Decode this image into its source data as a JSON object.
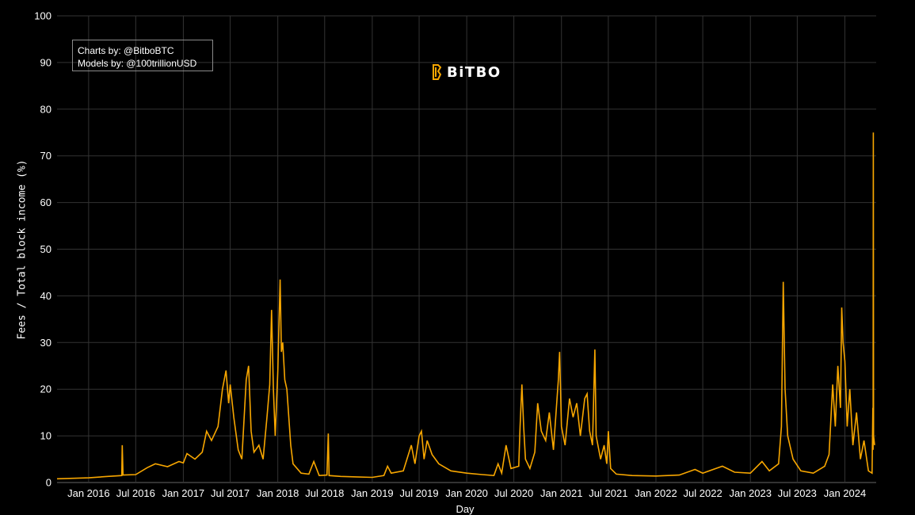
{
  "credits": {
    "line1": "Charts by: @BitboBTC",
    "line2": "Models by: @100trillionUSD"
  },
  "logo": {
    "text": "BiTBO",
    "color": "#f7a600"
  },
  "colors": {
    "line": "#f7a600",
    "background": "#000000",
    "grid": "#333333"
  },
  "chart_data": {
    "type": "line",
    "xlabel": "Day",
    "ylabel": "Fees / Total block income (%)",
    "ylim": [
      0,
      100
    ],
    "yticks": [
      0,
      10,
      20,
      30,
      40,
      50,
      60,
      70,
      80,
      90,
      100
    ],
    "xlim": [
      "2015-09-01",
      "2024-05-01"
    ],
    "xticks": [
      {
        "date": "2016-01-01",
        "label": "Jan 2016"
      },
      {
        "date": "2016-07-01",
        "label": "Jul 2016"
      },
      {
        "date": "2017-01-01",
        "label": "Jan 2017"
      },
      {
        "date": "2017-07-01",
        "label": "Jul 2017"
      },
      {
        "date": "2018-01-01",
        "label": "Jan 2018"
      },
      {
        "date": "2018-07-01",
        "label": "Jul 2018"
      },
      {
        "date": "2019-01-01",
        "label": "Jan 2019"
      },
      {
        "date": "2019-07-01",
        "label": "Jul 2019"
      },
      {
        "date": "2020-01-01",
        "label": "Jan 2020"
      },
      {
        "date": "2020-07-01",
        "label": "Jul 2020"
      },
      {
        "date": "2021-01-01",
        "label": "Jan 2021"
      },
      {
        "date": "2021-07-01",
        "label": "Jul 2021"
      },
      {
        "date": "2022-01-01",
        "label": "Jan 2022"
      },
      {
        "date": "2022-07-01",
        "label": "Jul 2022"
      },
      {
        "date": "2023-01-01",
        "label": "Jan 2023"
      },
      {
        "date": "2023-07-01",
        "label": "Jul 2023"
      },
      {
        "date": "2024-01-01",
        "label": "Jan 2024"
      }
    ],
    "grid": true,
    "series": [
      {
        "color": "#f7a600",
        "points": [
          [
            "2015-09-01",
            0.8
          ],
          [
            "2015-11-01",
            0.9
          ],
          [
            "2016-01-01",
            1.0
          ],
          [
            "2016-03-15",
            1.3
          ],
          [
            "2016-05-08",
            1.5
          ],
          [
            "2016-05-10",
            8.0
          ],
          [
            "2016-05-13",
            1.6
          ],
          [
            "2016-07-01",
            1.7
          ],
          [
            "2016-08-15",
            3.2
          ],
          [
            "2016-09-15",
            4.0
          ],
          [
            "2016-11-01",
            3.4
          ],
          [
            "2016-12-15",
            4.5
          ],
          [
            "2017-01-01",
            4.2
          ],
          [
            "2017-01-15",
            6.2
          ],
          [
            "2017-02-15",
            5.0
          ],
          [
            "2017-03-15",
            6.5
          ],
          [
            "2017-04-01",
            11.0
          ],
          [
            "2017-04-20",
            9.0
          ],
          [
            "2017-05-15",
            12.0
          ],
          [
            "2017-06-01",
            20.0
          ],
          [
            "2017-06-15",
            24.0
          ],
          [
            "2017-06-25",
            17.0
          ],
          [
            "2017-07-01",
            21.0
          ],
          [
            "2017-07-15",
            14.0
          ],
          [
            "2017-08-01",
            7.0
          ],
          [
            "2017-08-15",
            5.0
          ],
          [
            "2017-09-01",
            22.0
          ],
          [
            "2017-09-10",
            25.0
          ],
          [
            "2017-09-20",
            11.0
          ],
          [
            "2017-10-01",
            6.5
          ],
          [
            "2017-10-20",
            8.0
          ],
          [
            "2017-11-05",
            5.0
          ],
          [
            "2017-11-20",
            14.0
          ],
          [
            "2017-12-01",
            21.0
          ],
          [
            "2017-12-08",
            37.0
          ],
          [
            "2017-12-15",
            20.0
          ],
          [
            "2017-12-22",
            10.0
          ],
          [
            "2018-01-01",
            24.0
          ],
          [
            "2018-01-05",
            33.0
          ],
          [
            "2018-01-10",
            43.5
          ],
          [
            "2018-01-15",
            28.0
          ],
          [
            "2018-01-20",
            30.0
          ],
          [
            "2018-01-28",
            22.0
          ],
          [
            "2018-02-05",
            20.0
          ],
          [
            "2018-02-20",
            8.0
          ],
          [
            "2018-03-01",
            4.0
          ],
          [
            "2018-04-01",
            2.0
          ],
          [
            "2018-05-01",
            1.8
          ],
          [
            "2018-05-20",
            4.5
          ],
          [
            "2018-06-10",
            1.5
          ],
          [
            "2018-07-10",
            1.6
          ],
          [
            "2018-07-15",
            10.5
          ],
          [
            "2018-07-18",
            1.5
          ],
          [
            "2018-09-01",
            1.3
          ],
          [
            "2018-11-01",
            1.2
          ],
          [
            "2019-01-01",
            1.1
          ],
          [
            "2019-02-15",
            1.5
          ],
          [
            "2019-03-01",
            3.5
          ],
          [
            "2019-03-15",
            2.0
          ],
          [
            "2019-05-01",
            2.5
          ],
          [
            "2019-06-01",
            8.0
          ],
          [
            "2019-06-15",
            4.0
          ],
          [
            "2019-07-01",
            10.0
          ],
          [
            "2019-07-10",
            11.0
          ],
          [
            "2019-07-20",
            5.0
          ],
          [
            "2019-08-01",
            9.0
          ],
          [
            "2019-08-20",
            6.0
          ],
          [
            "2019-09-15",
            4.0
          ],
          [
            "2019-11-01",
            2.5
          ],
          [
            "2020-01-01",
            2.0
          ],
          [
            "2020-03-01",
            1.7
          ],
          [
            "2020-04-15",
            1.5
          ],
          [
            "2020-05-01",
            4.0
          ],
          [
            "2020-05-15",
            2.0
          ],
          [
            "2020-06-01",
            8.0
          ],
          [
            "2020-06-20",
            3.0
          ],
          [
            "2020-07-20",
            3.5
          ],
          [
            "2020-07-25",
            12.0
          ],
          [
            "2020-08-01",
            21.0
          ],
          [
            "2020-08-08",
            12.0
          ],
          [
            "2020-08-15",
            5.0
          ],
          [
            "2020-09-01",
            3.0
          ],
          [
            "2020-09-20",
            6.5
          ],
          [
            "2020-10-01",
            17.0
          ],
          [
            "2020-10-15",
            11.0
          ],
          [
            "2020-11-01",
            9.0
          ],
          [
            "2020-11-15",
            15.0
          ],
          [
            "2020-12-01",
            7.0
          ],
          [
            "2020-12-20",
            22.0
          ],
          [
            "2020-12-25",
            28.0
          ],
          [
            "2021-01-01",
            12.0
          ],
          [
            "2021-01-15",
            8.0
          ],
          [
            "2021-02-01",
            18.0
          ],
          [
            "2021-02-15",
            14.0
          ],
          [
            "2021-03-01",
            17.0
          ],
          [
            "2021-03-15",
            10.0
          ],
          [
            "2021-04-01",
            18.0
          ],
          [
            "2021-04-10",
            19.0
          ],
          [
            "2021-04-20",
            11.0
          ],
          [
            "2021-05-01",
            8.0
          ],
          [
            "2021-05-10",
            28.5
          ],
          [
            "2021-05-15",
            10.0
          ],
          [
            "2021-06-01",
            5.0
          ],
          [
            "2021-06-15",
            8.0
          ],
          [
            "2021-06-25",
            4.0
          ],
          [
            "2021-07-01",
            11.0
          ],
          [
            "2021-07-10",
            3.0
          ],
          [
            "2021-08-01",
            1.8
          ],
          [
            "2021-10-01",
            1.5
          ],
          [
            "2022-01-01",
            1.4
          ],
          [
            "2022-04-01",
            1.6
          ],
          [
            "2022-06-01",
            2.8
          ],
          [
            "2022-07-01",
            2.0
          ],
          [
            "2022-09-15",
            3.5
          ],
          [
            "2022-11-01",
            2.2
          ],
          [
            "2023-01-01",
            2.0
          ],
          [
            "2023-02-15",
            4.5
          ],
          [
            "2023-03-15",
            2.5
          ],
          [
            "2023-04-20",
            4.0
          ],
          [
            "2023-05-01",
            12.0
          ],
          [
            "2023-05-08",
            43.0
          ],
          [
            "2023-05-15",
            20.0
          ],
          [
            "2023-05-25",
            10.0
          ],
          [
            "2023-06-15",
            5.0
          ],
          [
            "2023-07-15",
            2.5
          ],
          [
            "2023-09-01",
            2.0
          ],
          [
            "2023-10-15",
            3.5
          ],
          [
            "2023-11-01",
            6.0
          ],
          [
            "2023-11-15",
            21.0
          ],
          [
            "2023-11-25",
            12.0
          ],
          [
            "2023-12-05",
            25.0
          ],
          [
            "2023-12-15",
            16.0
          ],
          [
            "2023-12-20",
            37.5
          ],
          [
            "2023-12-25",
            30.0
          ],
          [
            "2024-01-01",
            26.0
          ],
          [
            "2024-01-10",
            12.0
          ],
          [
            "2024-01-20",
            20.0
          ],
          [
            "2024-02-01",
            8.0
          ],
          [
            "2024-02-15",
            15.0
          ],
          [
            "2024-03-01",
            5.0
          ],
          [
            "2024-03-15",
            9.0
          ],
          [
            "2024-04-01",
            2.5
          ],
          [
            "2024-04-15",
            2.0
          ],
          [
            "2024-04-18",
            16.0
          ],
          [
            "2024-04-19",
            7.0
          ],
          [
            "2024-04-20",
            75.0
          ],
          [
            "2024-04-21",
            10.0
          ],
          [
            "2024-04-25",
            8.0
          ]
        ]
      }
    ]
  }
}
